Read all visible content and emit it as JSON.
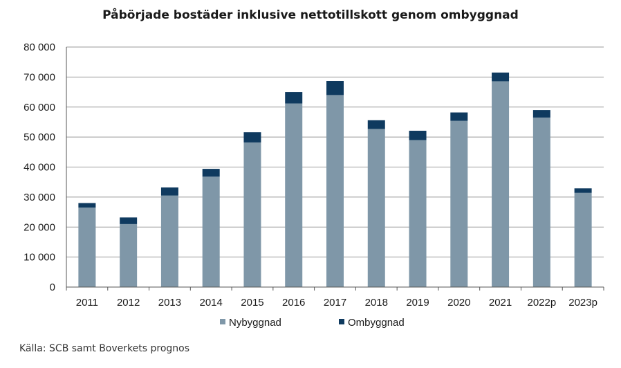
{
  "chart_data": {
    "type": "bar",
    "stacked": true,
    "title": "Påbörjade bostäder inklusive nettotillskott genom ombyggnad",
    "xlabel": "",
    "ylabel": "",
    "categories": [
      "2011",
      "2012",
      "2013",
      "2014",
      "2015",
      "2016",
      "2017",
      "2018",
      "2019",
      "2020",
      "2021",
      "2022p",
      "2023p"
    ],
    "series": [
      {
        "name": "Nybyggnad",
        "color": "#7f97a8",
        "values": [
          26500,
          21000,
          30500,
          36800,
          48200,
          61200,
          64000,
          52700,
          49000,
          55400,
          68600,
          56500,
          31400
        ]
      },
      {
        "name": "Ombyggnad",
        "color": "#0f3a5f",
        "values": [
          1500,
          2200,
          2700,
          2600,
          3400,
          3800,
          4700,
          2900,
          3100,
          2800,
          2900,
          2500,
          1500
        ]
      }
    ],
    "ylim": [
      0,
      80000
    ],
    "yticks": [
      "0",
      "10 000",
      "20 000",
      "30 000",
      "40 000",
      "50 000",
      "60 000",
      "70 000",
      "80 000"
    ],
    "grid": true,
    "legend_position": "bottom"
  },
  "source_note": "Källa: SCB samt Boverkets prognos"
}
